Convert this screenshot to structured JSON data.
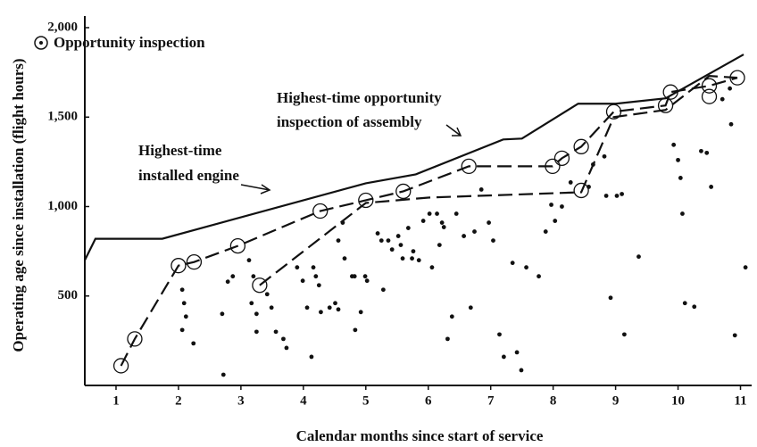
{
  "chart_data": {
    "type": "scatter",
    "x_label": "Calendar months since start of service",
    "y_label": "Operating age since installation (flight hours)",
    "xlim": [
      0.5,
      11.15
    ],
    "ylim": [
      0,
      2000
    ],
    "xticks": [
      1,
      2,
      3,
      4,
      5,
      6,
      7,
      8,
      9,
      10,
      11
    ],
    "yticks": [
      500,
      {
        "value": 1000,
        "label": "1,000"
      },
      {
        "value": 1500,
        "label": "1,500"
      },
      {
        "value": 2000,
        "label": "2,000"
      }
    ],
    "color": "#111111",
    "annotations": [
      {
        "lines": [
          "Highest-time",
          "installed engine"
        ]
      },
      {
        "lines": [
          "Highest-time opportunity",
          "inspection of assembly"
        ]
      }
    ],
    "series": [
      {
        "style": "solid",
        "x": [
          0.5,
          0.67,
          1.74,
          5,
          5.8,
          7.2,
          7.5,
          8.4,
          9.0,
          9.8,
          11.05
        ],
        "values": [
          700,
          820,
          820,
          1130,
          1180,
          1375,
          1380,
          1575,
          1575,
          1605,
          1850
        ]
      },
      {
        "style": "dashed",
        "x": [
          1.08,
          1.3,
          2,
          2.25,
          2.95,
          4.27,
          5,
          5.6,
          6.65,
          7.99,
          8.14,
          8.45,
          8.97,
          9.8,
          9.88,
          10.5,
          10.95
        ],
        "values": [
          110,
          260,
          670,
          690,
          780,
          975,
          1035,
          1085,
          1225,
          1225,
          1270,
          1335,
          1530,
          1565,
          1640,
          1675,
          1720
        ]
      },
      {
        "style": "dashed",
        "x": [
          3.3,
          5,
          6.0,
          8.45,
          8.97,
          9.8,
          10.5,
          10.95
        ],
        "values": [
          560,
          1020,
          1050,
          1080,
          1500,
          1540,
          1730,
          1720
        ]
      },
      {
        "style": "circled",
        "name": "Opportunity inspection",
        "x": [
          1.08,
          1.3,
          2,
          2.25,
          2.95,
          3.3,
          4.27,
          5,
          5.6,
          6.65,
          7.99,
          8.14,
          8.45,
          8.45,
          8.97,
          9.8,
          9.88,
          10.5,
          10.5,
          10.95
        ],
        "values": [
          110,
          260,
          670,
          690,
          780,
          560,
          975,
          1035,
          1085,
          1225,
          1225,
          1270,
          1335,
          1090,
          1530,
          1565,
          1640,
          1675,
          1615,
          1720
        ]
      },
      {
        "style": "dot",
        "x": [
          2.06,
          2.09,
          2.12,
          2.06,
          2.24,
          2.7,
          2.79,
          2.87,
          2.72,
          3.13,
          3.2,
          3.17,
          3.25,
          3.25,
          3.42,
          3.49,
          3.56,
          3.68,
          3.73,
          3.9,
          3.99,
          4.06,
          4.13,
          4.16,
          4.2,
          4.25,
          4.28,
          4.42,
          4.51,
          4.56,
          4.63,
          4.56,
          4.66,
          4.78,
          4.82,
          4.83,
          4.92,
          4.99,
          5.02,
          5.19,
          5.25,
          5.28,
          5.36,
          5.42,
          5.52,
          5.56,
          5.59,
          5.68,
          5.74,
          5.76,
          5.85,
          5.92,
          6.02,
          6.14,
          6.06,
          6.18,
          6.22,
          6.25,
          6.31,
          6.38,
          6.45,
          6.57,
          6.68,
          6.74,
          6.85,
          6.97,
          7.04,
          7.14,
          7.21,
          7.35,
          7.42,
          7.49,
          7.57,
          7.77,
          7.88,
          7.97,
          8.03,
          8.14,
          8.28,
          8.57,
          8.64,
          8.82,
          8.85,
          8.92,
          9.02,
          9.1,
          9.14,
          9.37,
          9.93,
          10.0,
          10.04,
          10.07,
          10.11,
          10.26,
          10.37,
          10.46,
          10.53,
          10.71,
          10.83,
          10.85,
          10.91,
          11.08
        ],
        "values": [
          535,
          460,
          385,
          310,
          235,
          400,
          580,
          610,
          60,
          700,
          610,
          460,
          400,
          300,
          510,
          435,
          300,
          260,
          210,
          660,
          585,
          435,
          160,
          660,
          610,
          560,
          410,
          435,
          460,
          425,
          910,
          810,
          710,
          610,
          610,
          310,
          410,
          610,
          585,
          850,
          810,
          535,
          810,
          760,
          835,
          785,
          710,
          880,
          710,
          750,
          700,
          920,
          960,
          960,
          660,
          785,
          910,
          885,
          260,
          385,
          960,
          835,
          435,
          860,
          1095,
          910,
          810,
          285,
          160,
          685,
          185,
          85,
          660,
          610,
          860,
          1010,
          920,
          1000,
          1135,
          1110,
          1235,
          1280,
          1060,
          490,
          1060,
          1070,
          285,
          720,
          1345,
          1260,
          1160,
          960,
          460,
          440,
          1310,
          1300,
          1110,
          1600,
          1660,
          1460,
          280,
          660
        ]
      }
    ]
  }
}
